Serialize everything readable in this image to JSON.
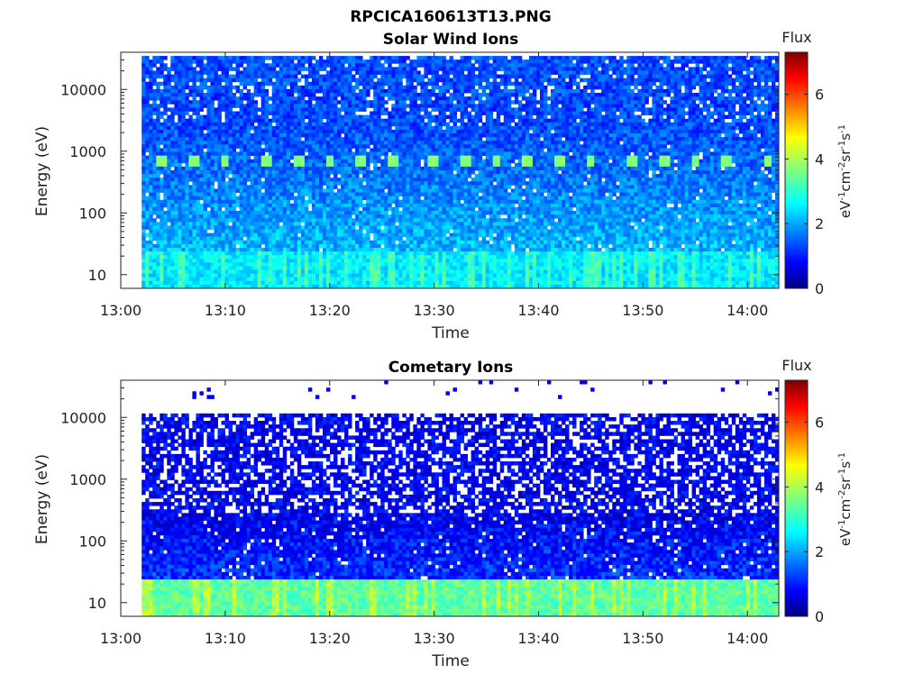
{
  "figure_title": "RPCICA160613T13.PNG",
  "chart_data": [
    {
      "type": "heatmap",
      "title": "Solar Wind Ions",
      "xlabel": "Time",
      "ylabel": "Energy (eV)",
      "x_ticks": [
        "13:00",
        "13:10",
        "13:20",
        "13:30",
        "13:40",
        "13:50",
        "14:00"
      ],
      "y_scale": "log",
      "y_ticks": [
        10,
        100,
        1000,
        10000
      ],
      "y_tick_labels": [
        "10",
        "100",
        "1000",
        "10000"
      ],
      "xlim": [
        "13:00",
        "14:03"
      ],
      "ylim": [
        6,
        40000
      ],
      "data_start": "13:02",
      "colorbar": {
        "title": "Flux",
        "label": "eV-1cm-2sr-1s-1",
        "ticks": [
          0,
          2,
          4,
          6
        ],
        "range": [
          0,
          7.3
        ],
        "colormap": "jet"
      },
      "features": [
        {
          "kind": "background",
          "energy_max": 35000,
          "level": 1.0
        },
        {
          "kind": "low-energy band",
          "energy_max": 25,
          "level": 2.2
        },
        {
          "kind": "periodic peaks",
          "energy": 650,
          "level": 3.5,
          "times": [
            "13:04",
            "13:07",
            "13:10",
            "13:14",
            "13:17",
            "13:20",
            "13:23",
            "13:26",
            "13:30",
            "13:33",
            "13:36",
            "13:39",
            "13:42",
            "13:45",
            "13:49",
            "13:52",
            "13:55",
            "13:58",
            "14:02"
          ]
        }
      ]
    },
    {
      "type": "heatmap",
      "title": "Cometary Ions",
      "xlabel": "Time",
      "ylabel": "Energy (eV)",
      "x_ticks": [
        "13:00",
        "13:10",
        "13:20",
        "13:30",
        "13:40",
        "13:50",
        "14:00"
      ],
      "y_scale": "log",
      "y_ticks": [
        10,
        100,
        1000,
        10000
      ],
      "y_tick_labels": [
        "10",
        "100",
        "1000",
        "10000"
      ],
      "xlim": [
        "13:00",
        "14:03"
      ],
      "ylim": [
        6,
        40000
      ],
      "data_start": "13:02",
      "colorbar": {
        "title": "Flux",
        "label": "eV-1cm-2sr-1s-1",
        "ticks": [
          0,
          2,
          4,
          6
        ],
        "range": [
          0,
          7.3
        ],
        "colormap": "jet"
      },
      "features": [
        {
          "kind": "background",
          "energy_max": 11000,
          "level": 0.4
        },
        {
          "kind": "sparse high-energy points",
          "energy_min": 20000,
          "level": 0.8
        },
        {
          "kind": "low-energy band",
          "energy_max": 25,
          "level": 3.0
        }
      ]
    }
  ]
}
